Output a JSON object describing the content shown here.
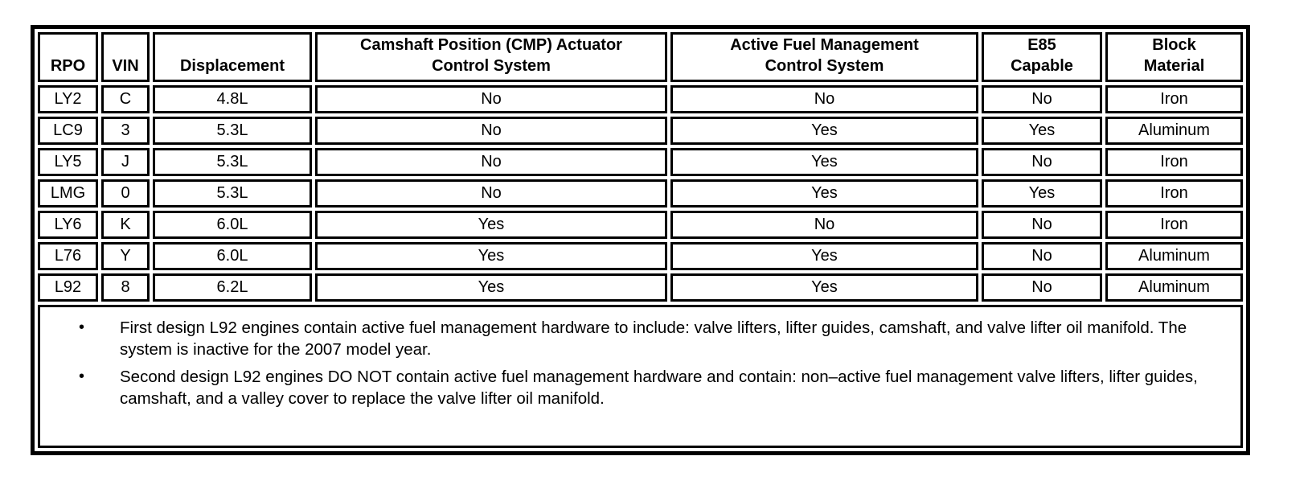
{
  "colors": {
    "ink": "#000000",
    "background": "#ffffff"
  },
  "table": {
    "columns": [
      {
        "key": "rpo",
        "label": "RPO"
      },
      {
        "key": "vin",
        "label": "VIN"
      },
      {
        "key": "disp",
        "label": "Displacement"
      },
      {
        "key": "cmp",
        "label": "Camshaft Position (CMP) Actuator\nControl System"
      },
      {
        "key": "afm",
        "label": "Active Fuel Management\nControl System"
      },
      {
        "key": "e85",
        "label": "E85\nCapable"
      },
      {
        "key": "blk",
        "label": "Block\nMaterial"
      }
    ],
    "rows": [
      [
        "LY2",
        "C",
        "4.8L",
        "No",
        "No",
        "No",
        "Iron"
      ],
      [
        "LC9",
        "3",
        "5.3L",
        "No",
        "Yes",
        "Yes",
        "Aluminum"
      ],
      [
        "LY5",
        "J",
        "5.3L",
        "No",
        "Yes",
        "No",
        "Iron"
      ],
      [
        "LMG",
        "0",
        "5.3L",
        "No",
        "Yes",
        "Yes",
        "Iron"
      ],
      [
        "LY6",
        "K",
        "6.0L",
        "Yes",
        "No",
        "No",
        "Iron"
      ],
      [
        "L76",
        "Y",
        "6.0L",
        "Yes",
        "Yes",
        "No",
        "Aluminum"
      ],
      [
        "L92",
        "8",
        "6.2L",
        "Yes",
        "Yes",
        "No",
        "Aluminum"
      ]
    ]
  },
  "notes": {
    "bullet_glyph": "•",
    "items": [
      "First design L92 engines contain active fuel management hardware to include: valve lifters, lifter guides, camshaft, and valve lifter oil manifold. The system is inactive for the 2007 model year.",
      "Second design L92 engines DO NOT contain active fuel management hardware and contain: non–active fuel management valve lifters, lifter guides, camshaft, and a valley cover to replace the valve lifter oil manifold."
    ]
  }
}
